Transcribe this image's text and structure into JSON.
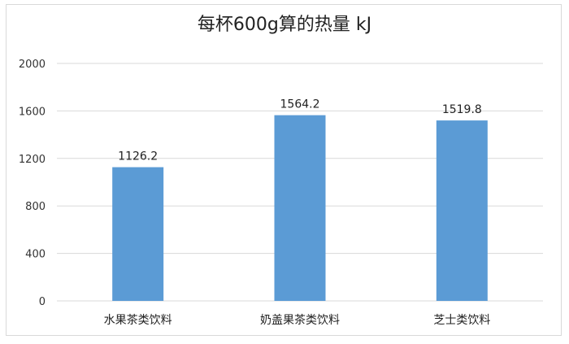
{
  "chart_data": {
    "type": "bar",
    "title": "每杯600g算的热量 kJ",
    "categories": [
      "水果茶类饮料",
      "奶盖果茶类饮料",
      "芝士类饮料"
    ],
    "values": [
      1126.2,
      1564.2,
      1519.8
    ],
    "data_labels": [
      "1126.2",
      "1564.2",
      "1519.8"
    ],
    "ylim": [
      0,
      2000
    ],
    "yticks": [
      0,
      400,
      800,
      1200,
      1600,
      2000
    ],
    "grid": true,
    "legend": "none",
    "bar_color": "#5b9bd5",
    "grid_color": "#d9d9d9"
  }
}
